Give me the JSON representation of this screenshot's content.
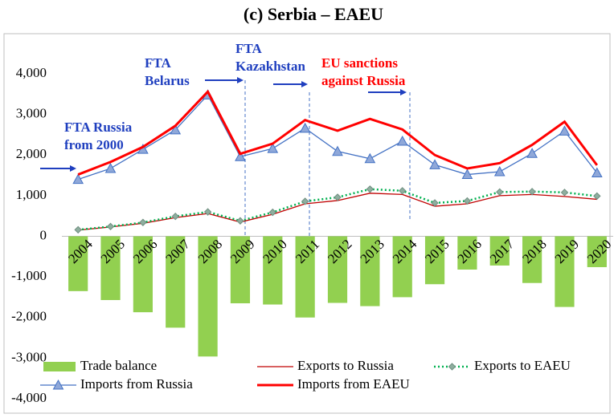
{
  "chart_data": {
    "type": "combo",
    "title": "(c) Serbia – EAEU",
    "categories": [
      "2004",
      "2005",
      "2006",
      "2007",
      "2008",
      "2009",
      "2010",
      "2011",
      "2012",
      "2013",
      "2014",
      "2015",
      "2016",
      "2017",
      "2018",
      "2019",
      "2020"
    ],
    "series": [
      {
        "name": "Trade balance",
        "type": "bar",
        "color": "#92d050",
        "values": [
          -1350,
          -1570,
          -1870,
          -2250,
          -2960,
          -1650,
          -1680,
          -2000,
          -1640,
          -1720,
          -1500,
          -1180,
          -820,
          -720,
          -1150,
          -1740,
          -760
        ]
      },
      {
        "name": "Exports to Russia",
        "type": "line",
        "color": "#c00000",
        "values": [
          150,
          230,
          320,
          460,
          560,
          350,
          540,
          800,
          880,
          1060,
          1030,
          740,
          800,
          1000,
          1030,
          980,
          910
        ]
      },
      {
        "name": "Exports to EAEU",
        "type": "line",
        "color": "#00b050",
        "dashed": true,
        "marker": "diamond",
        "values": [
          160,
          240,
          340,
          490,
          600,
          380,
          590,
          860,
          960,
          1160,
          1120,
          820,
          870,
          1090,
          1100,
          1080,
          990
        ]
      },
      {
        "name": "Imports from Russia",
        "type": "line",
        "color": "#4472c4",
        "marker": "triangle",
        "values": [
          1400,
          1670,
          2140,
          2620,
          3480,
          1960,
          2160,
          2660,
          2090,
          1910,
          2340,
          1760,
          1520,
          1590,
          2040,
          2590,
          1560
        ]
      },
      {
        "name": "Imports from EAEU",
        "type": "line",
        "color": "#ff0000",
        "thick": true,
        "values": [
          1520,
          1830,
          2200,
          2720,
          3560,
          2030,
          2280,
          2860,
          2600,
          2890,
          2630,
          2000,
          1670,
          1800,
          2250,
          2820,
          1750
        ]
      }
    ],
    "ylim": [
      -4000,
      4000
    ],
    "yticks": [
      {
        "value": -4000,
        "label": "-4,000"
      },
      {
        "value": -3000,
        "label": "-3,000"
      },
      {
        "value": -2000,
        "label": "-2,000"
      },
      {
        "value": -1000,
        "label": "-1,000"
      },
      0,
      {
        "value": 1000,
        "label": "1,000"
      },
      {
        "value": 2000,
        "label": "2,000"
      },
      {
        "value": 3000,
        "label": "3,000"
      },
      {
        "value": 4000,
        "label": "4,000"
      }
    ],
    "annotations": [
      {
        "text": [
          "FTA Russia",
          "from 2000"
        ],
        "color": "#1f3fbf"
      },
      {
        "text": [
          "FTA",
          "Belarus"
        ],
        "color": "#1f3fbf"
      },
      {
        "text": [
          "FTA",
          "Kazakhstan"
        ],
        "color": "#1f3fbf"
      },
      {
        "text": [
          "EU sanctions",
          "against Russia"
        ],
        "color": "#ff0000"
      }
    ]
  }
}
